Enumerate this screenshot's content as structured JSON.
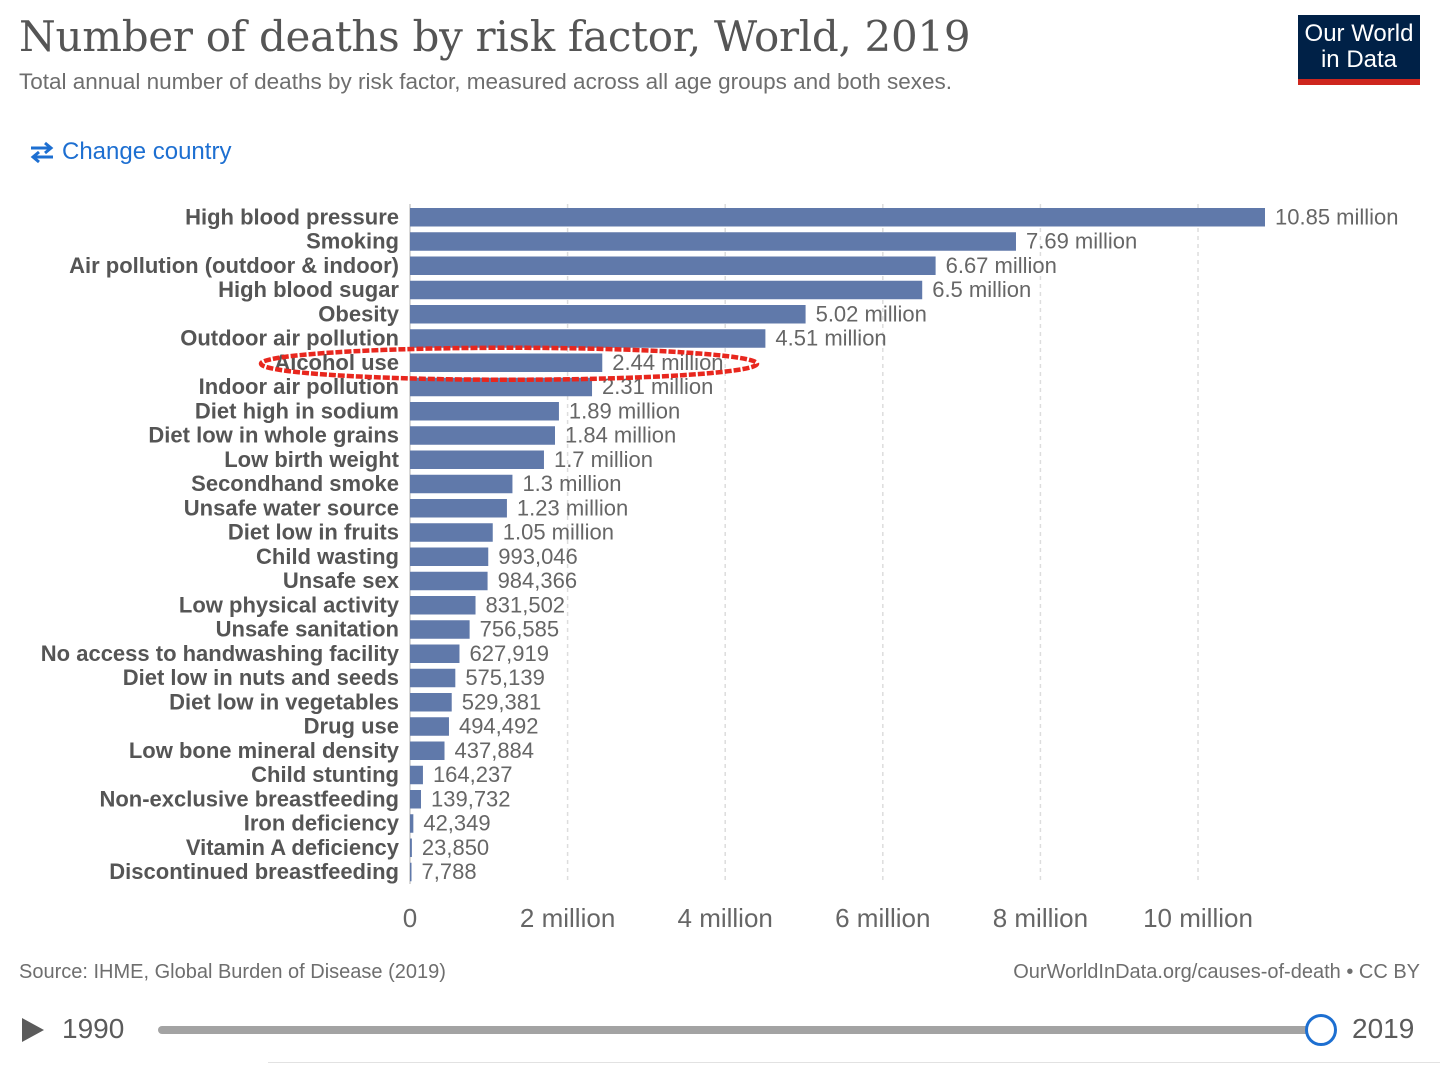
{
  "header": {
    "title": "Number of deaths by risk factor, World, 2019",
    "subtitle": "Total annual number of deaths by risk factor, measured across all age groups and both sexes.",
    "logo_line1": "Our World",
    "logo_line2": "in Data"
  },
  "controls": {
    "change_country_label": "Change country"
  },
  "chart_data": {
    "type": "bar",
    "orientation": "horizontal",
    "categories": [
      "High blood pressure",
      "Smoking",
      "Air pollution (outdoor & indoor)",
      "High blood sugar",
      "Obesity",
      "Outdoor air pollution",
      "Alcohol use",
      "Indoor air pollution",
      "Diet high in sodium",
      "Diet low in whole grains",
      "Low birth weight",
      "Secondhand smoke",
      "Unsafe water source",
      "Diet low in fruits",
      "Child wasting",
      "Unsafe sex",
      "Low physical activity",
      "Unsafe sanitation",
      "No access to handwashing facility",
      "Diet low in nuts and seeds",
      "Diet low in vegetables",
      "Drug use",
      "Low bone mineral density",
      "Child stunting",
      "Non-exclusive breastfeeding",
      "Iron deficiency",
      "Vitamin A deficiency",
      "Discontinued breastfeeding"
    ],
    "values": [
      10850000,
      7690000,
      6670000,
      6500000,
      5020000,
      4510000,
      2440000,
      2310000,
      1890000,
      1840000,
      1700000,
      1300000,
      1230000,
      1050000,
      993046,
      984366,
      831502,
      756585,
      627919,
      575139,
      529381,
      494492,
      437884,
      164237,
      139732,
      42349,
      23850,
      7788
    ],
    "value_labels": [
      "10.85 million",
      "7.69 million",
      "6.67 million",
      "6.5 million",
      "5.02 million",
      "4.51 million",
      "2.44 million",
      "2.31 million",
      "1.89 million",
      "1.84 million",
      "1.7 million",
      "1.3 million",
      "1.23 million",
      "1.05 million",
      "993,046",
      "984,366",
      "831,502",
      "756,585",
      "627,919",
      "575,139",
      "529,381",
      "494,492",
      "437,884",
      "164,237",
      "139,732",
      "42,349",
      "23,850",
      "7,788"
    ],
    "x_ticks": [
      0,
      2000000,
      4000000,
      6000000,
      8000000,
      10000000
    ],
    "x_tick_labels": [
      "0",
      "2 million",
      "4 million",
      "6 million",
      "8 million",
      "10 million"
    ],
    "xlim": [
      0,
      10850000
    ],
    "grid": "vertical dashed",
    "bar_color": "#6079aa",
    "highlighted_category": "Alcohol use",
    "highlight_color": "#e8271e"
  },
  "footer": {
    "source": "Source: IHME, Global Burden of Disease (2019)",
    "url": "OurWorldInData.org/causes-of-death • CC BY"
  },
  "timeline": {
    "start_year": "1990",
    "end_year": "2019",
    "selected_fraction": 1.0
  },
  "colors": {
    "accent": "#1d6fd1",
    "logo_bg": "#002147",
    "logo_stripe": "#ce261e"
  }
}
